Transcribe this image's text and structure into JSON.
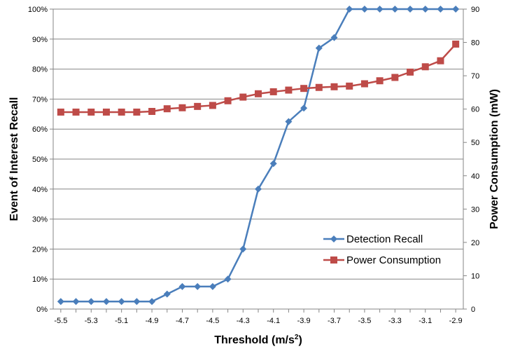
{
  "chart_data": {
    "type": "line",
    "x": [
      -5.5,
      -5.4,
      -5.3,
      -5.2,
      -5.1,
      -5.0,
      -4.9,
      -4.8,
      -4.7,
      -4.6,
      -4.5,
      -4.4,
      -4.3,
      -4.2,
      -4.1,
      -4.0,
      -3.9,
      -3.8,
      -3.7,
      -3.6,
      -3.5,
      -3.4,
      -3.3,
      -3.2,
      -3.1,
      -3.0,
      -2.9
    ],
    "x_tick_labels": [
      "-5.5",
      "-5.3",
      "-5.1",
      "-4.9",
      "-4.7",
      "-4.5",
      "-4.3",
      "-4.1",
      "-3.9",
      "-3.7",
      "-3.5",
      "-3.3",
      "-3.1",
      "-2.9"
    ],
    "xlim": [
      -5.55,
      -2.85
    ],
    "xlabel_main": "Threshold  (m/s",
    "xlabel_sup": "2",
    "xlabel_close": ")",
    "ylabel": "Event of Interest Recall",
    "y2label": "Power Consumption  (mW)",
    "ylim": [
      0,
      100
    ],
    "y2lim": [
      0,
      90
    ],
    "y_tick_labels": [
      "0%",
      "10%",
      "20%",
      "30%",
      "40%",
      "50%",
      "60%",
      "70%",
      "80%",
      "90%",
      "100%"
    ],
    "y2_tick_labels": [
      "0",
      "10",
      "20",
      "30",
      "40",
      "50",
      "60",
      "70",
      "80",
      "90"
    ],
    "grid": true,
    "legend_position": "bottom-right",
    "series": [
      {
        "name": "Detection Recall",
        "axis": "left",
        "color": "#4a7ebb",
        "marker": "diamond",
        "values": [
          2.5,
          2.5,
          2.5,
          2.5,
          2.5,
          2.5,
          2.5,
          5,
          7.5,
          7.5,
          7.5,
          10,
          20,
          40,
          48.5,
          62.5,
          67,
          87,
          90.5,
          100,
          100,
          100,
          100,
          100,
          100,
          100,
          100
        ]
      },
      {
        "name": "Power Consumption",
        "axis": "right",
        "color": "#be4b48",
        "marker": "square",
        "values": [
          59.1,
          59.1,
          59.1,
          59.1,
          59.1,
          59.1,
          59.3,
          60.1,
          60.4,
          60.8,
          61.1,
          62.5,
          63.6,
          64.6,
          65.2,
          65.7,
          66.2,
          66.5,
          66.7,
          66.9,
          67.6,
          68.5,
          69.5,
          71.1,
          72.7,
          74.5,
          79.5
        ]
      }
    ]
  }
}
